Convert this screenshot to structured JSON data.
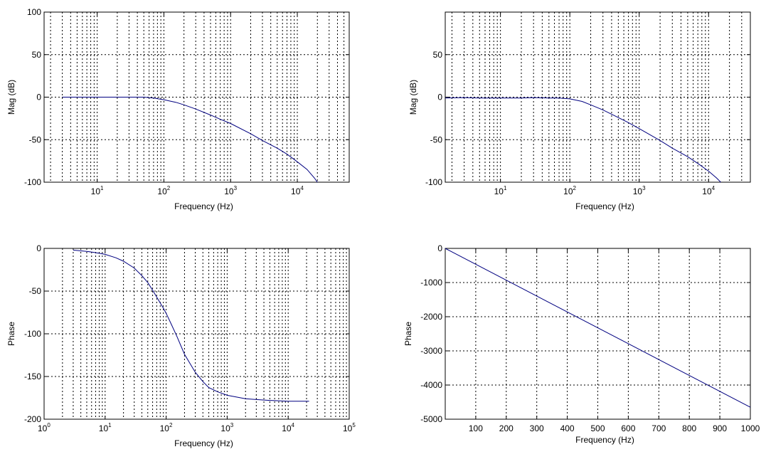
{
  "chart_data": [
    {
      "type": "line",
      "panel": "top-left",
      "xscale": "log",
      "xlim": [
        1.6,
        60000
      ],
      "ylim": [
        -100,
        100
      ],
      "xticks": [
        {
          "base": "10",
          "exp": "1",
          "value": 10
        },
        {
          "base": "10",
          "exp": "2",
          "value": 100
        },
        {
          "base": "10",
          "exp": "3",
          "value": 1000
        },
        {
          "base": "10",
          "exp": "4",
          "value": 10000
        }
      ],
      "yticks": [
        "-100",
        "-50",
        "0",
        "50",
        "100"
      ],
      "xlabel": "Frequency (Hz)",
      "ylabel": "Mag (dB)",
      "grid": true,
      "series": [
        {
          "color": "#000080",
          "x": [
            3,
            10,
            30,
            50,
            70,
            100,
            150,
            200,
            300,
            500,
            700,
            1000,
            2000,
            3000,
            5000,
            7000,
            10000,
            14000,
            18000,
            20000
          ],
          "y": [
            0,
            0,
            0,
            0,
            -1,
            -3,
            -6,
            -9,
            -14,
            -21,
            -26,
            -31,
            -43,
            -51,
            -60,
            -67,
            -76,
            -85,
            -95,
            -100
          ]
        }
      ]
    },
    {
      "type": "line",
      "panel": "top-right",
      "xscale": "log",
      "xlim": [
        1.6,
        40000
      ],
      "ylim": [
        -100,
        100
      ],
      "xticks": [
        {
          "base": "10",
          "exp": "1",
          "value": 10
        },
        {
          "base": "10",
          "exp": "2",
          "value": 100
        },
        {
          "base": "10",
          "exp": "3",
          "value": 1000
        },
        {
          "base": "10",
          "exp": "4",
          "value": 10000
        }
      ],
      "yticks": [
        "-100",
        "-50",
        "0",
        "50"
      ],
      "xlabel": "Frequency (Hz)",
      "ylabel": "Mag (dB)",
      "grid": true,
      "series": [
        {
          "color": "#000080",
          "x": [
            1.6,
            3,
            5,
            10,
            20,
            30,
            50,
            70,
            100,
            150,
            200,
            300,
            500,
            700,
            1000,
            2000,
            3000,
            5000,
            7000,
            10000,
            13000,
            15000
          ],
          "y": [
            -1,
            -0.5,
            -1,
            -1,
            -1,
            -0.5,
            -1,
            -1,
            -2,
            -5,
            -9,
            -15,
            -24,
            -30,
            -37,
            -51,
            -60,
            -70,
            -78,
            -87,
            -95,
            -100
          ]
        }
      ]
    },
    {
      "type": "line",
      "panel": "bottom-left",
      "xscale": "log",
      "xlim": [
        1,
        100000
      ],
      "ylim": [
        -200,
        0
      ],
      "xticks": [
        {
          "base": "10",
          "exp": "0",
          "value": 1
        },
        {
          "base": "10",
          "exp": "1",
          "value": 10
        },
        {
          "base": "10",
          "exp": "2",
          "value": 100
        },
        {
          "base": "10",
          "exp": "3",
          "value": 1000
        },
        {
          "base": "10",
          "exp": "4",
          "value": 10000
        },
        {
          "base": "10",
          "exp": "5",
          "value": 100000
        }
      ],
      "yticks": [
        "-200",
        "-150",
        "-100",
        "-50",
        "0"
      ],
      "xlabel": "Frequency (Hz)",
      "ylabel": "Phase",
      "grid": true,
      "series": [
        {
          "color": "#000080",
          "x": [
            3,
            5,
            7,
            10,
            15,
            20,
            30,
            40,
            50,
            60,
            70,
            80,
            90,
            100,
            120,
            150,
            200,
            300,
            400,
            500,
            700,
            1000,
            2000,
            3000,
            5000,
            10000,
            22000
          ],
          "y": [
            -2,
            -3.5,
            -5,
            -7,
            -11,
            -15,
            -23,
            -32,
            -40,
            -49,
            -57,
            -64,
            -70,
            -76,
            -88,
            -103,
            -124,
            -145,
            -156,
            -163,
            -168,
            -172,
            -176,
            -177,
            -178,
            -179,
            -179
          ]
        }
      ]
    },
    {
      "type": "line",
      "panel": "bottom-right",
      "xscale": "linear",
      "xlim": [
        0,
        1000
      ],
      "ylim": [
        -5000,
        0
      ],
      "xticks": [
        "100",
        "200",
        "300",
        "400",
        "500",
        "600",
        "700",
        "800",
        "900",
        "1000"
      ],
      "yticks": [
        "-5000",
        "-4000",
        "-3000",
        "-2000",
        "-1000",
        "0"
      ],
      "xlabel": "Frequency (Hz)",
      "ylabel": "Phase",
      "grid": true,
      "series": [
        {
          "color": "#000080",
          "x": [
            0,
            1000
          ],
          "y": [
            0,
            -4650
          ]
        }
      ]
    }
  ]
}
